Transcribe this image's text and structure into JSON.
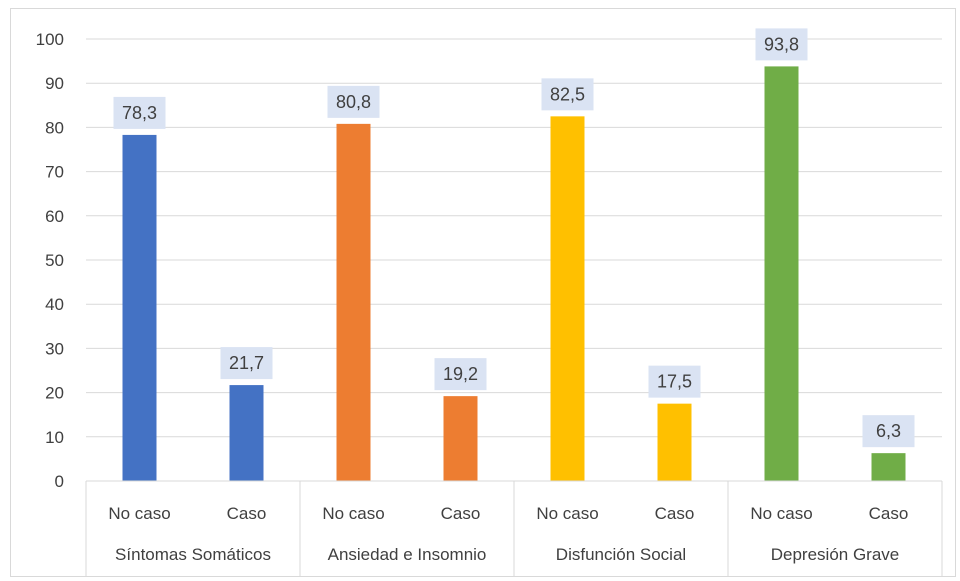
{
  "chart_data": {
    "type": "bar",
    "groups": [
      {
        "label": "Síntomas Somáticos",
        "color": "#4472c4",
        "bars": [
          {
            "label": "No caso",
            "value": 78.3,
            "value_label": "78,3"
          },
          {
            "label": "Caso",
            "value": 21.7,
            "value_label": "21,7"
          }
        ]
      },
      {
        "label": "Ansiedad e Insomnio",
        "color": "#ed7d31",
        "bars": [
          {
            "label": "No caso",
            "value": 80.8,
            "value_label": "80,8"
          },
          {
            "label": "Caso",
            "value": 19.2,
            "value_label": "19,2"
          }
        ]
      },
      {
        "label": "Disfunción Social",
        "color": "#ffc000",
        "bars": [
          {
            "label": "No caso",
            "value": 82.5,
            "value_label": "82,5"
          },
          {
            "label": "Caso",
            "value": 17.5,
            "value_label": "17,5"
          }
        ]
      },
      {
        "label": "Depresión Grave",
        "color": "#70ad47",
        "bars": [
          {
            "label": "No caso",
            "value": 93.8,
            "value_label": "93,8"
          },
          {
            "label": "Caso",
            "value": 6.3,
            "value_label": "6,3"
          }
        ]
      }
    ],
    "ylim": [
      0,
      100
    ],
    "yticks": [
      "0",
      "10",
      "20",
      "30",
      "40",
      "50",
      "60",
      "70",
      "80",
      "90",
      "100"
    ],
    "grid": true,
    "title": "",
    "xlabel": "",
    "ylabel": "",
    "label_box_color": "#dae3f3",
    "gridline_color": "#d9d9d9",
    "text_color": "#404040"
  }
}
